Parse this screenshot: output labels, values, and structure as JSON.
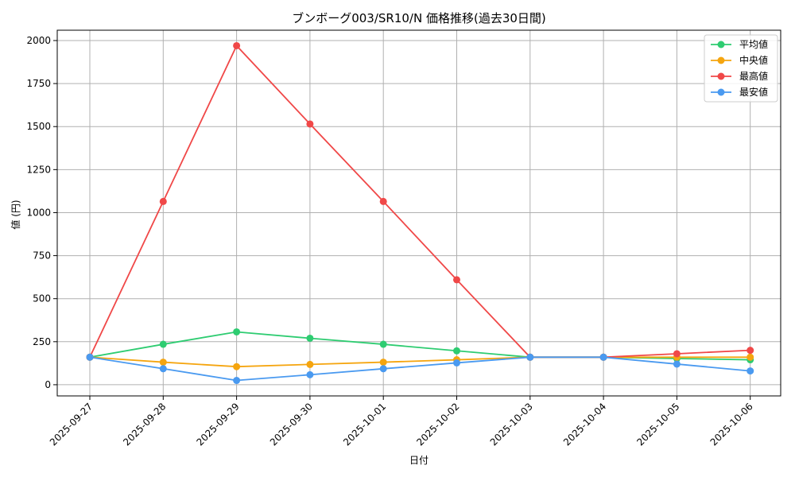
{
  "chart_data": {
    "type": "line",
    "title": "ブンボーグ003/SR10/N 価格推移(過去30日間)",
    "xlabel": "日付",
    "ylabel": "値 (円)",
    "categories": [
      "2025-09-27",
      "2025-09-28",
      "2025-09-29",
      "2025-09-30",
      "2025-10-01",
      "2025-10-02",
      "2025-10-03",
      "2025-10-04",
      "2025-10-05",
      "2025-10-06"
    ],
    "yticks": [
      0,
      250,
      500,
      750,
      1000,
      1250,
      1500,
      1750,
      2000
    ],
    "ylim": [
      -65,
      2060
    ],
    "grid": true,
    "legend_position": "top-right",
    "series": [
      {
        "name": "平均値",
        "color": "#2ecc71",
        "values": [
          160,
          235,
          307,
          270,
          235,
          197,
          160,
          160,
          152,
          145
        ]
      },
      {
        "name": "中央値",
        "color": "#f5a50f",
        "values": [
          160,
          131,
          105,
          118,
          131,
          145,
          160,
          160,
          160,
          160
        ]
      },
      {
        "name": "最高値",
        "color": "#f04848",
        "values": [
          160,
          1065,
          1970,
          1515,
          1065,
          610,
          160,
          160,
          180,
          200
        ]
      },
      {
        "name": "最安値",
        "color": "#4a9af0",
        "values": [
          160,
          93,
          25,
          58,
          93,
          127,
          160,
          160,
          120,
          80
        ]
      }
    ]
  }
}
